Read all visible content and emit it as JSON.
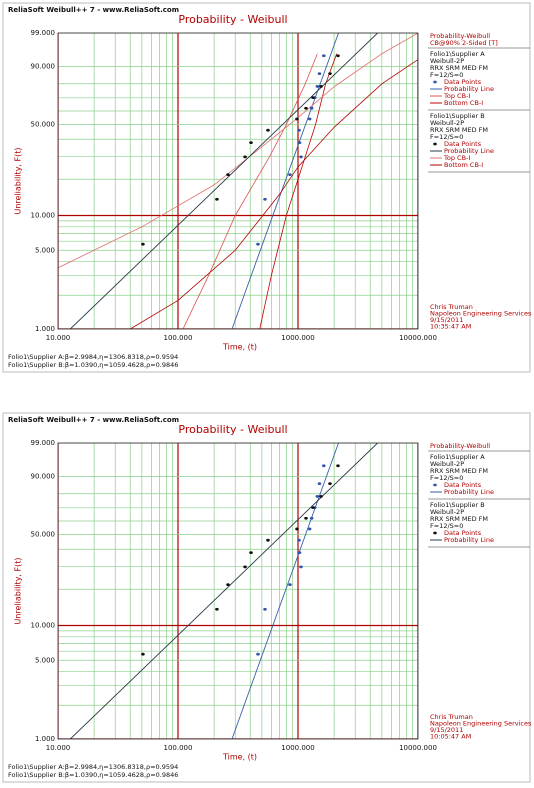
{
  "chart_data": [
    {
      "type": "weibull_probability",
      "header": "ReliaSoft Weibull++ 7 - www.ReliaSoft.com",
      "title": "Probability - Weibull",
      "xlabel": "Time, (t)",
      "ylabel": "Unreliability, F(t)",
      "log_x": true,
      "xlim": [
        10,
        10000
      ],
      "ylim": [
        1,
        99
      ],
      "xticks": [
        {
          "value": 10,
          "label": "10.000"
        },
        {
          "value": 100,
          "label": "100.000"
        },
        {
          "value": 1000,
          "label": "1000.000"
        },
        {
          "value": 10000,
          "label": "10000.000"
        }
      ],
      "yticks": [
        {
          "value": 1,
          "label": "1.000"
        },
        {
          "value": 5,
          "label": "5.000"
        },
        {
          "value": 10,
          "label": "10.000"
        },
        {
          "value": 50,
          "label": "50.000"
        },
        {
          "value": 90,
          "label": "90.000"
        },
        {
          "value": 99,
          "label": "99.000"
        }
      ],
      "minor_xticks": [
        20,
        30,
        40,
        50,
        60,
        70,
        80,
        90,
        200,
        300,
        400,
        500,
        600,
        700,
        800,
        900,
        2000,
        3000,
        4000,
        5000,
        6000,
        7000,
        8000,
        9000
      ],
      "minor_yticks": [
        2,
        3,
        4,
        6,
        7,
        8,
        9,
        20,
        30,
        40,
        60,
        70,
        80
      ],
      "major_grid_color": "#b00000",
      "minor_grid_color": "#8ccf8c",
      "legend_title": "Probability-Weibull",
      "legend_subtitle": "CB@90% 2-Sided [T]",
      "series": [
        {
          "name": "Folio1\\Supplier A",
          "model": "Weibull-2P",
          "method": "RRX SRM MED FM",
          "sample": "F=12/S=0",
          "point_label": "Data Points",
          "line_label": "Probability Line",
          "color": "#3355aa",
          "line_color": "#3a5fa8",
          "beta": 2.9984,
          "eta": 1306.8318,
          "x": [
            464,
            531,
            857,
            1059,
            1030,
            1020,
            1250,
            1300,
            1380,
            1450,
            1510,
            1640
          ],
          "values": [
            5.65,
            13.71,
            21.77,
            29.84,
            37.9,
            45.97,
            54.03,
            62.1,
            70.16,
            78.23,
            86.29,
            94.35
          ],
          "bounds": [
            {
              "name": "Top CB-I",
              "color": "#e05050",
              "x": [
                110,
                180,
                300,
                580,
                800,
                1150,
                1450
              ],
              "values": [
                1,
                3,
                10,
                30,
                50,
                80,
                95
              ]
            },
            {
              "name": "Bottom CB-I",
              "color": "#c00000",
              "x": [
                480,
                600,
                800,
                1150,
                1400,
                1700,
                2100
              ],
              "values": [
                1,
                3,
                10,
                30,
                50,
                80,
                95
              ]
            }
          ]
        },
        {
          "name": "Folio1\\Supplier B",
          "model": "Weibull-2P",
          "method": "RRX SRM MED FM",
          "sample": "F=12/S=0",
          "point_label": "Data Points",
          "line_label": "Probability Line",
          "color": "#111111",
          "line_color": "#2a3a4a",
          "beta": 1.039,
          "eta": 1059.4628,
          "x": [
            51,
            211,
            261,
            362,
            406,
            562,
            981,
            1166,
            1334,
            1556,
            1848,
            2154
          ],
          "values": [
            5.65,
            13.71,
            21.77,
            29.84,
            37.9,
            45.97,
            54.03,
            62.1,
            70.16,
            78.23,
            86.29,
            94.35
          ],
          "bounds": [
            {
              "name": "Top CB-I",
              "color": "#e07070",
              "x": [
                10,
                50,
                200,
                600,
                1000,
                2000,
                5000,
                10000
              ],
              "values": [
                3.5,
                8,
                18,
                40,
                55,
                78,
                95,
                99
              ]
            },
            {
              "name": "Bottom CB-I",
              "color": "#b00000",
              "x": [
                40,
                100,
                300,
                700,
                1000,
                2000,
                5000,
                10000
              ],
              "values": [
                1,
                1.8,
                5,
                15,
                25,
                48,
                80,
                93
              ]
            }
          ]
        }
      ],
      "signature": [
        "Chris Truman",
        "Napoleon Engineering Services",
        "9/15/2011",
        "10:35:47 AM"
      ],
      "footer": [
        "Folio1\\Supplier A:β=2.9984,η=1306.8318,ρ=0.9594",
        "Folio1\\Supplier B:β=1.0390,η=1059.4628,ρ=0.9846"
      ]
    },
    {
      "type": "weibull_probability",
      "header": "ReliaSoft Weibull++ 7 - www.ReliaSoft.com",
      "title": "Probability - Weibull",
      "xlabel": "Time, (t)",
      "ylabel": "Unreliability, F(t)",
      "log_x": true,
      "xlim": [
        10,
        10000
      ],
      "ylim": [
        1,
        99
      ],
      "xticks": [
        {
          "value": 10,
          "label": "10.000"
        },
        {
          "value": 100,
          "label": "100.000"
        },
        {
          "value": 1000,
          "label": "1000.000"
        },
        {
          "value": 10000,
          "label": "10000.000"
        }
      ],
      "yticks": [
        {
          "value": 1,
          "label": "1.000"
        },
        {
          "value": 5,
          "label": "5.000"
        },
        {
          "value": 10,
          "label": "10.000"
        },
        {
          "value": 50,
          "label": "50.000"
        },
        {
          "value": 90,
          "label": "90.000"
        },
        {
          "value": 99,
          "label": "99.000"
        }
      ],
      "minor_xticks": [
        20,
        30,
        40,
        50,
        60,
        70,
        80,
        90,
        200,
        300,
        400,
        500,
        600,
        700,
        800,
        900,
        2000,
        3000,
        4000,
        5000,
        6000,
        7000,
        8000,
        9000
      ],
      "minor_yticks": [
        2,
        3,
        4,
        6,
        7,
        8,
        9,
        20,
        30,
        40,
        60,
        70,
        80
      ],
      "major_grid_color": "#b00000",
      "minor_grid_color": "#8ccf8c",
      "legend_title": "Probability-Weibull",
      "series": [
        {
          "name": "Folio1\\Supplier A",
          "model": "Weibull-2P",
          "method": "RRX SRM MED FM",
          "sample": "F=12/S=0",
          "point_label": "Data Points",
          "line_label": "Probability Line",
          "color": "#3355aa",
          "line_color": "#3a5fa8",
          "beta": 2.9984,
          "eta": 1306.8318,
          "x": [
            464,
            531,
            857,
            1059,
            1030,
            1020,
            1250,
            1300,
            1380,
            1450,
            1510,
            1640
          ],
          "values": [
            5.65,
            13.71,
            21.77,
            29.84,
            37.9,
            45.97,
            54.03,
            62.1,
            70.16,
            78.23,
            86.29,
            94.35
          ]
        },
        {
          "name": "Folio1\\Supplier B",
          "model": "Weibull-2P",
          "method": "RRX SRM MED FM",
          "sample": "F=12/S=0",
          "point_label": "Data Points",
          "line_label": "Probability Line",
          "color": "#111111",
          "line_color": "#2a3a4a",
          "beta": 1.039,
          "eta": 1059.4628,
          "x": [
            51,
            211,
            261,
            362,
            406,
            562,
            981,
            1166,
            1334,
            1556,
            1848,
            2154
          ],
          "values": [
            5.65,
            13.71,
            21.77,
            29.84,
            37.9,
            45.97,
            54.03,
            62.1,
            70.16,
            78.23,
            86.29,
            94.35
          ]
        }
      ],
      "signature": [
        "Chris Truman",
        "Napoleon Engineering Services",
        "9/15/2011",
        "10:05:47 AM"
      ],
      "footer": [
        "Folio1\\Supplier A:β=2.9984,η=1306.8318,ρ=0.9594",
        "Folio1\\Supplier B:β=1.0390,η=1059.4628,ρ=0.9846"
      ]
    }
  ]
}
